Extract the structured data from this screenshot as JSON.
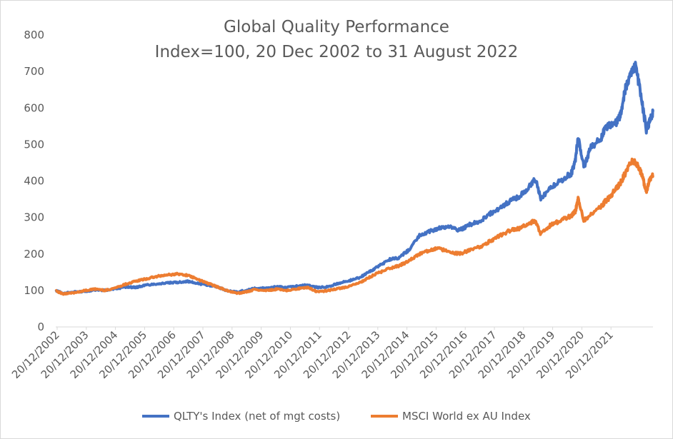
{
  "chart_data": {
    "type": "line",
    "title": "Global Quality Performance",
    "subtitle": "Index=100, 20 Dec 2002 to 31 August 2022",
    "xlabel": "",
    "ylabel": "",
    "ylim": [
      0,
      800
    ],
    "y_ticks": [
      0,
      100,
      200,
      300,
      400,
      500,
      600,
      700,
      800
    ],
    "x_tick_labels": [
      "20/12/2002",
      "20/12/2003",
      "20/12/2004",
      "20/12/2005",
      "20/12/2006",
      "20/12/2007",
      "20/12/2008",
      "20/12/2009",
      "20/12/2010",
      "20/12/2011",
      "20/12/2012",
      "20/12/2013",
      "20/12/2014",
      "20/12/2015",
      "20/12/2016",
      "20/12/2017",
      "20/12/2018",
      "20/12/2019",
      "20/12/2020",
      "20/12/2021"
    ],
    "grid": false,
    "legend_position": "bottom",
    "x": [
      2002.97,
      2003.2,
      2003.5,
      2003.97,
      2004.3,
      2004.6,
      2004.97,
      2005.3,
      2005.6,
      2005.97,
      2006.3,
      2006.6,
      2006.97,
      2007.3,
      2007.6,
      2007.97,
      2008.3,
      2008.6,
      2008.97,
      2009.2,
      2009.5,
      2009.97,
      2010.3,
      2010.6,
      2010.97,
      2011.3,
      2011.6,
      2011.97,
      2012.3,
      2012.6,
      2012.97,
      2013.3,
      2013.6,
      2013.97,
      2014.3,
      2014.6,
      2014.97,
      2015.3,
      2015.6,
      2015.97,
      2016.3,
      2016.6,
      2016.97,
      2017.3,
      2017.6,
      2017.97,
      2018.3,
      2018.6,
      2018.8,
      2018.97,
      2019.3,
      2019.6,
      2019.97,
      2020.1,
      2020.2,
      2020.4,
      2020.6,
      2020.97,
      2021.1,
      2021.3,
      2021.45,
      2021.6,
      2021.75,
      2021.97,
      2022.1,
      2022.3,
      2022.45,
      2022.55,
      2022.67
    ],
    "series": [
      {
        "name": "QLTY's Index (net of mgt costs)",
        "color": "#4472C4",
        "values": [
          100,
          92,
          95,
          98,
          102,
          100,
          105,
          110,
          108,
          115,
          118,
          120,
          122,
          125,
          120,
          115,
          110,
          100,
          95,
          100,
          105,
          108,
          110,
          108,
          112,
          115,
          108,
          110,
          120,
          125,
          135,
          150,
          165,
          185,
          190,
          210,
          250,
          262,
          270,
          275,
          265,
          280,
          290,
          310,
          325,
          345,
          360,
          385,
          405,
          350,
          380,
          400,
          420,
          450,
          520,
          440,
          490,
          520,
          545,
          555,
          560,
          580,
          650,
          700,
          715,
          620,
          540,
          560,
          590
        ]
      },
      {
        "name": "MSCI World ex AU Index",
        "color": "#ED7D31",
        "values": [
          100,
          90,
          93,
          100,
          104,
          100,
          108,
          118,
          125,
          132,
          138,
          142,
          145,
          142,
          132,
          120,
          110,
          100,
          92,
          95,
          102,
          100,
          104,
          100,
          105,
          108,
          96,
          100,
          105,
          110,
          120,
          135,
          148,
          160,
          168,
          180,
          200,
          210,
          215,
          205,
          200,
          210,
          220,
          235,
          250,
          265,
          270,
          285,
          290,
          255,
          280,
          290,
          305,
          315,
          350,
          290,
          310,
          330,
          345,
          360,
          380,
          395,
          420,
          455,
          450,
          420,
          370,
          400,
          415
        ]
      }
    ]
  }
}
